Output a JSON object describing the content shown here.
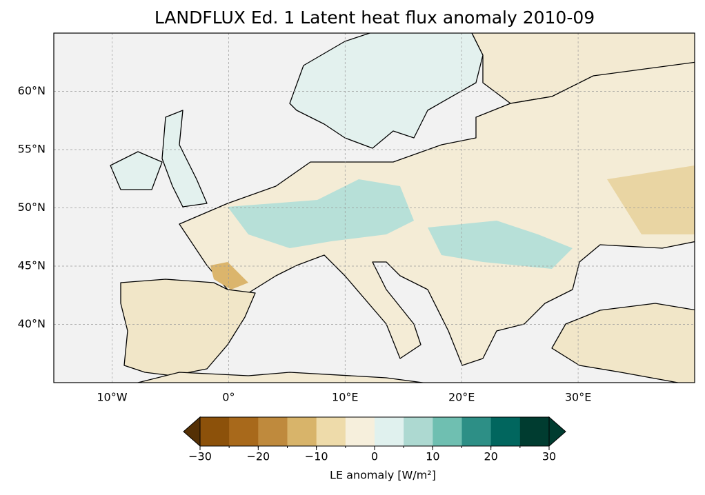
{
  "chart_data": {
    "type": "map",
    "title": "LANDFLUX Ed. 1 Latent heat flux anomaly 2010-09",
    "xlim": [
      -15,
      40
    ],
    "ylim": [
      35,
      65
    ],
    "xticks": [
      {
        "value": -10,
        "label": "10°W"
      },
      {
        "value": 0,
        "label": "0°"
      },
      {
        "value": 10,
        "label": "10°E"
      },
      {
        "value": 20,
        "label": "20°E"
      },
      {
        "value": 30,
        "label": "30°E"
      }
    ],
    "yticks": [
      {
        "value": 40,
        "label": "40°N"
      },
      {
        "value": 45,
        "label": "45°N"
      },
      {
        "value": 50,
        "label": "50°N"
      },
      {
        "value": 55,
        "label": "55°N"
      },
      {
        "value": 60,
        "label": "60°N"
      }
    ],
    "grid": true,
    "colorbar": {
      "label": "LE anomaly [W/m²]",
      "levels": [
        -30,
        -25,
        -20,
        -15,
        -10,
        -5,
        0,
        5,
        10,
        15,
        20,
        25,
        30
      ],
      "colors": [
        "#8c510a",
        "#a8691b",
        "#bf8a3d",
        "#d8b46a",
        "#eedbaa",
        "#f6efdc",
        "#e0f1ee",
        "#add9d1",
        "#6fbfb1",
        "#2d8f86",
        "#01665e",
        "#003c30"
      ],
      "extend_colors": [
        "#543005",
        "#003c30"
      ],
      "ticks": [
        {
          "value": -30,
          "label": "−30"
        },
        {
          "value": -20,
          "label": "−20"
        },
        {
          "value": -10,
          "label": "−10"
        },
        0,
        10,
        20,
        30
      ]
    }
  }
}
